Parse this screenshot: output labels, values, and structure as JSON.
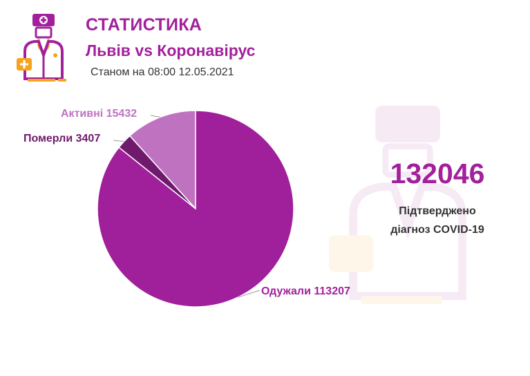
{
  "header": {
    "title": "СТАТИСТИКА",
    "subtitle": "Львів vs Коронавірус",
    "date_line": "Станом на 08:00 12.05.2021"
  },
  "summary": {
    "total": "132046",
    "label_line1": "Підтверджено",
    "label_line2": "діагноз COVID-19"
  },
  "colors": {
    "brand": "#a2209c",
    "recovered": "#a01f9b",
    "deceased": "#6f1a6c",
    "active": "#bf72c0",
    "accent_orange": "#f6a31c"
  },
  "chart_data": {
    "type": "pie",
    "title": "",
    "slices": [
      {
        "label": "Одужали",
        "value": 113207,
        "display": "Одужали 113207",
        "color": "#a01f9b"
      },
      {
        "label": "Померли",
        "value": 3407,
        "display": "Померли 3407",
        "color": "#6f1a6c"
      },
      {
        "label": "Активні",
        "value": 15432,
        "display": "Активні 15432",
        "color": "#bf72c0"
      }
    ]
  }
}
